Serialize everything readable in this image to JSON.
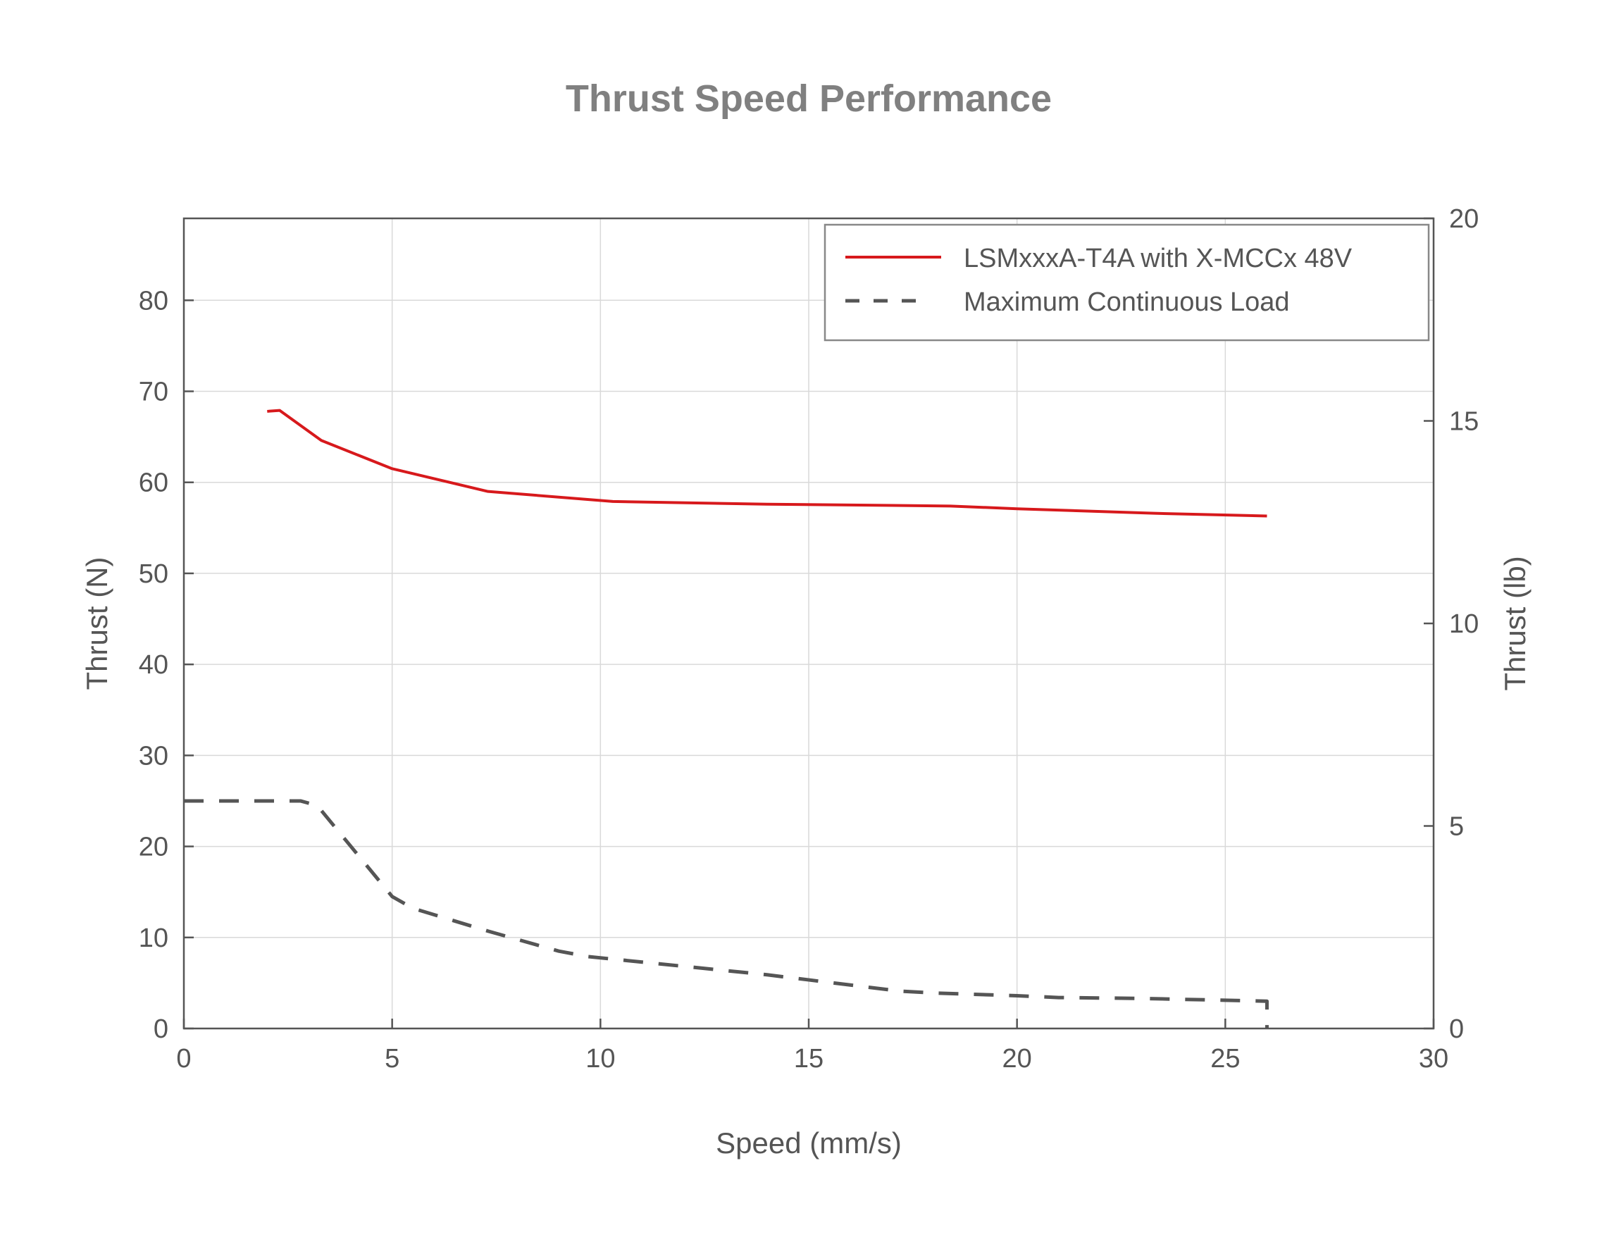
{
  "chart_data": {
    "type": "line",
    "title": "Thrust Speed Performance",
    "xlabel": "Speed (mm/s)",
    "ylabel": "Thrust (N)",
    "ylabel_right": "Thrust (lb)",
    "xlim": [
      0,
      30
    ],
    "ylim": [
      0,
      89
    ],
    "ylim_right": [
      0,
      20
    ],
    "xticks": [
      0,
      5,
      10,
      15,
      20,
      25,
      30
    ],
    "yticks": [
      0,
      10,
      20,
      30,
      40,
      50,
      60,
      70,
      80
    ],
    "yticks_right": [
      0,
      5,
      10,
      15,
      20
    ],
    "grid": true,
    "legend_position": "top-right",
    "series": [
      {
        "name": "LSMxxxA-T4A with X-MCCx 48V",
        "color": "#d7191c",
        "style": "solid",
        "x": [
          2.0,
          2.3,
          3.3,
          5.0,
          7.3,
          10.3,
          14.0,
          18.4,
          20.0,
          23.3,
          26.0
        ],
        "y": [
          67.8,
          67.9,
          64.6,
          61.5,
          59.0,
          57.9,
          57.6,
          57.4,
          57.1,
          56.6,
          56.3
        ]
      },
      {
        "name": "Maximum Continuous Load",
        "color": "#555555",
        "style": "dashed",
        "x": [
          0,
          2.8,
          3.2,
          5.0,
          5.5,
          7.3,
          9.0,
          9.7,
          14.0,
          17.2,
          18.0,
          20.0,
          21.0,
          23.0,
          26.0,
          26.0,
          26.0
        ],
        "y": [
          25.0,
          25.0,
          24.5,
          14.5,
          13.2,
          10.7,
          8.5,
          7.9,
          5.9,
          4.1,
          3.9,
          3.6,
          3.4,
          3.3,
          3.0,
          2.0,
          0
        ]
      }
    ]
  }
}
